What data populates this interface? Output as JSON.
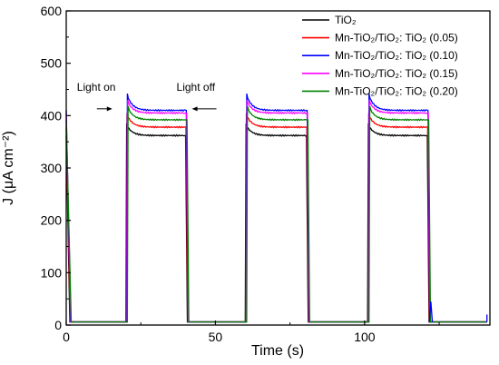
{
  "chart_data": {
    "type": "line",
    "title": "",
    "xlabel": "Time (s)",
    "ylabel": "J (μA cm⁻²)",
    "xlim": [
      0,
      142
    ],
    "ylim": [
      0,
      600
    ],
    "xticks": [
      0,
      50,
      100
    ],
    "yticks": [
      0,
      100,
      200,
      300,
      400,
      500,
      600
    ],
    "grid": false,
    "legend_position": "top-right",
    "on_intervals": [
      [
        20,
        40
      ],
      [
        60,
        80.5
      ],
      [
        101,
        121
      ]
    ],
    "dark_level": 6,
    "annotations": [
      {
        "text": "Light on",
        "x": 20,
        "y": 413,
        "arrow": "right"
      },
      {
        "text": "Light off",
        "x": 40,
        "y": 413,
        "arrow": "left"
      }
    ],
    "series": [
      {
        "legend": "TiO₂",
        "color": "#000000",
        "peak": 385,
        "steady": 362
      },
      {
        "legend": "Mn-TiO₂/TiO₂:  TiO₂ (0.05)",
        "color": "#ff0000",
        "peak": 405,
        "steady": 378
      },
      {
        "legend": "Mn-TiO₂/TiO₂:  TiO₂ (0.10)",
        "color": "#0000ff",
        "peak": 442,
        "steady": 410
      },
      {
        "legend": "Mn-TiO₂/TiO₂:  TiO₂ (0.15)",
        "color": "#ff00ff",
        "peak": 430,
        "steady": 405
      },
      {
        "legend": "Mn-TiO₂/TiO₂:  TiO₂ (0.20)",
        "color": "#008000",
        "peak": 418,
        "steady": 392
      }
    ]
  }
}
